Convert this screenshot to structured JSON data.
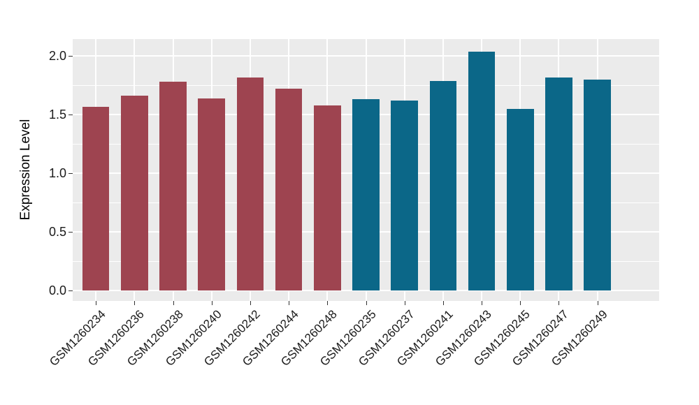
{
  "chart_data": {
    "type": "bar",
    "title": "",
    "xlabel": "",
    "ylabel": "Expression Level",
    "categories": [
      "GSM1260234",
      "GSM1260236",
      "GSM1260238",
      "GSM1260240",
      "GSM1260242",
      "GSM1260244",
      "GSM1260248",
      "GSM1260235",
      "GSM1260237",
      "GSM1260241",
      "GSM1260243",
      "GSM1260245",
      "GSM1260247",
      "GSM1260249"
    ],
    "values": [
      1.57,
      1.66,
      1.78,
      1.64,
      1.82,
      1.72,
      1.58,
      1.63,
      1.62,
      1.79,
      2.04,
      1.55,
      1.82,
      1.8
    ],
    "bar_colors": [
      "#9E4450",
      "#9E4450",
      "#9E4450",
      "#9E4450",
      "#9E4450",
      "#9E4450",
      "#9E4450",
      "#0B6788",
      "#0B6788",
      "#0B6788",
      "#0B6788",
      "#0B6788",
      "#0B6788",
      "#0B6788"
    ],
    "ytick_labels": [
      "0.0",
      "0.5",
      "1.0",
      "1.5",
      "2.0"
    ],
    "ytick_values": [
      0,
      0.5,
      1,
      1.5,
      2
    ],
    "yminor_values": [
      0.25,
      0.75,
      1.25,
      1.75
    ],
    "ylim": [
      -0.088,
      2.145
    ],
    "bar_width_fraction": 0.7,
    "x_label_angle": 45,
    "legend": "none",
    "grid": "on"
  },
  "style": {
    "panel_bg": "#EBEBEB",
    "grid_color": "#FFFFFF",
    "tick_color": "#333333",
    "tick_label_color": "#1a1a1a",
    "axis_title_color": "#000000",
    "page_bg": "#FFFFFF",
    "group1_color": "#9E4450",
    "group2_color": "#0B6788"
  }
}
